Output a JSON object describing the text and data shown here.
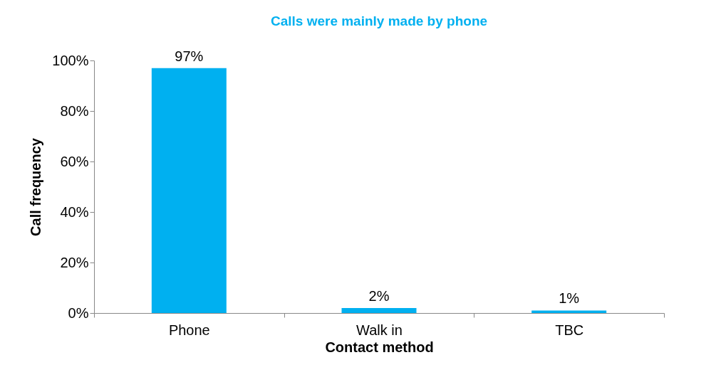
{
  "chart_data": {
    "type": "bar",
    "title": "Calls were mainly made by phone",
    "xlabel": "Contact method",
    "ylabel": "Call frequency",
    "categories": [
      "Phone",
      "Walk in",
      "TBC"
    ],
    "values": [
      97,
      2,
      1
    ],
    "color": "#00b0f0",
    "value_labels": [
      "97%",
      "2%",
      "1%"
    ],
    "ylim": [
      0,
      100
    ],
    "yticks": [
      {
        "value": 0,
        "label": "0%"
      },
      {
        "value": 20,
        "label": "20%"
      },
      {
        "value": 40,
        "label": "40%"
      },
      {
        "value": 60,
        "label": "60%"
      },
      {
        "value": 80,
        "label": "80%"
      },
      {
        "value": 100,
        "label": "100%"
      }
    ],
    "grid": false
  }
}
